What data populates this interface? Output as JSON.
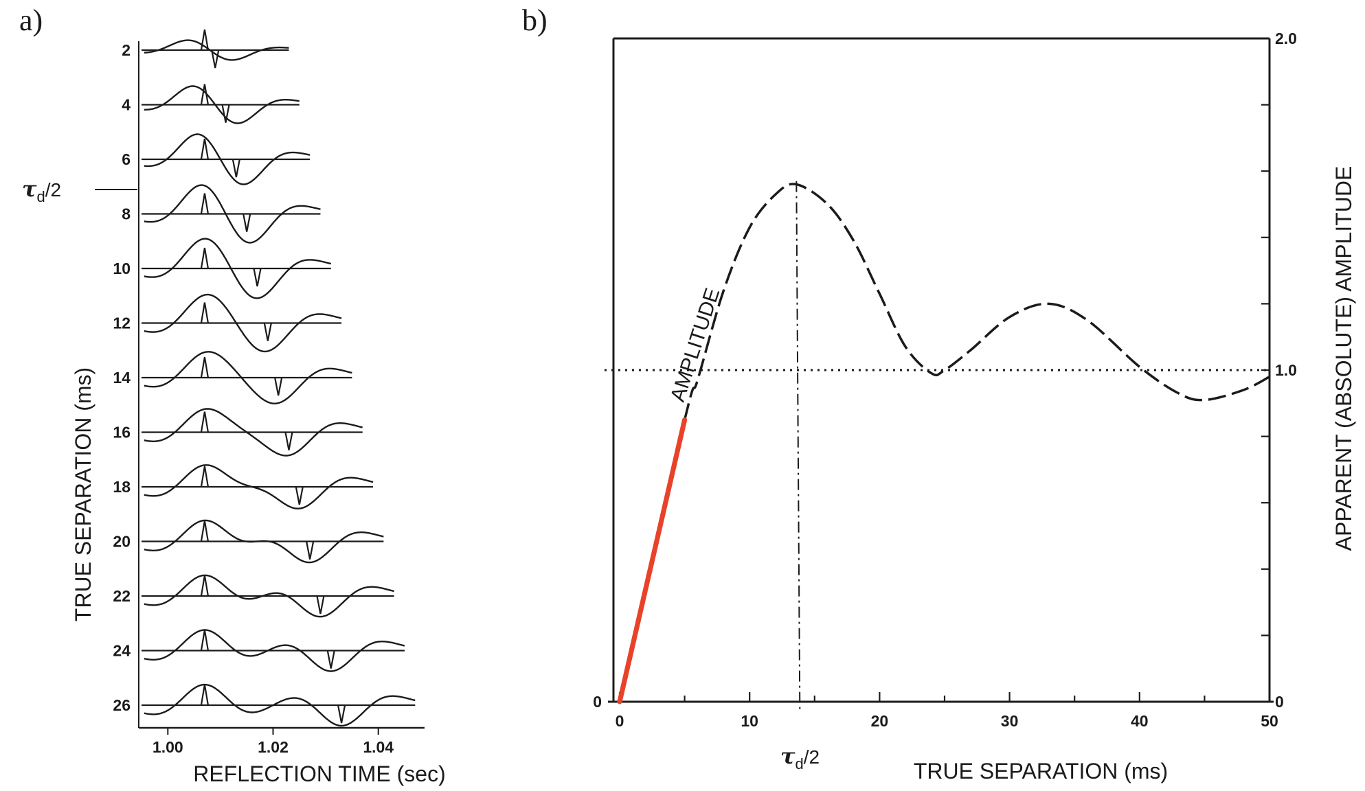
{
  "panel_a": {
    "label": "a)"
  },
  "panel_b": {
    "label": "b)"
  },
  "chart_data": [
    {
      "type": "line",
      "panel": "a",
      "xlabel": "REFLECTION TIME (sec)",
      "ylabel": "TRUE SEPARATION (ms)",
      "xlim": [
        0.995,
        1.048
      ],
      "x_ticks": [
        "1.00",
        "1.02",
        "1.04"
      ],
      "trace_labels": [
        "2",
        "4",
        "6",
        "8",
        "10",
        "12",
        "14",
        "16",
        "18",
        "20",
        "22",
        "24",
        "26"
      ],
      "separations_ms": [
        2,
        4,
        6,
        8,
        10,
        12,
        14,
        16,
        18,
        20,
        22,
        24,
        26
      ],
      "first_reflection_time": 1.007,
      "annotation": {
        "symbol": "τ",
        "subscript": "d",
        "suffix": "/2",
        "between_traces": [
          "6",
          "8"
        ]
      },
      "colors": {
        "ink": "#1b1b1b"
      }
    },
    {
      "type": "line",
      "panel": "b",
      "xlabel": "TRUE SEPARATION (ms)",
      "ylabel": "APPARENT (ABSOLUTE) AMPLITUDE",
      "xlim": [
        0,
        50
      ],
      "ylim": [
        0,
        2.0
      ],
      "x_ticks": [
        "0",
        "10",
        "20",
        "30",
        "40",
        "50"
      ],
      "y_ticks": [
        "0",
        "1.0",
        "2.0"
      ],
      "y_minor_step": 0.2,
      "grid": false,
      "reference_line": {
        "y": 1.0,
        "style": "dotted"
      },
      "peak_marker": {
        "x": 13.6,
        "style": "dash-dot"
      },
      "annotation_x": {
        "symbol": "τ",
        "subscript": "d",
        "suffix": "/2"
      },
      "curve_label": "AMPLITUDE",
      "series": [
        {
          "label": "linear",
          "style": "solid",
          "color": "#e8432a",
          "x": [
            0,
            5
          ],
          "y": [
            0.0,
            0.85
          ]
        },
        {
          "label": "amplitude",
          "style": "dashed",
          "color": "#1b1b1b",
          "x": [
            0,
            5,
            6,
            8,
            10,
            12,
            13.6,
            16,
            18,
            20,
            22,
            24,
            25,
            27,
            30,
            33,
            36,
            40,
            43,
            45,
            48,
            50
          ],
          "y": [
            0.0,
            0.85,
            0.97,
            1.24,
            1.43,
            1.53,
            1.56,
            1.5,
            1.39,
            1.23,
            1.07,
            0.99,
            1.0,
            1.06,
            1.16,
            1.2,
            1.15,
            1.01,
            0.93,
            0.91,
            0.94,
            0.98
          ]
        }
      ]
    }
  ]
}
